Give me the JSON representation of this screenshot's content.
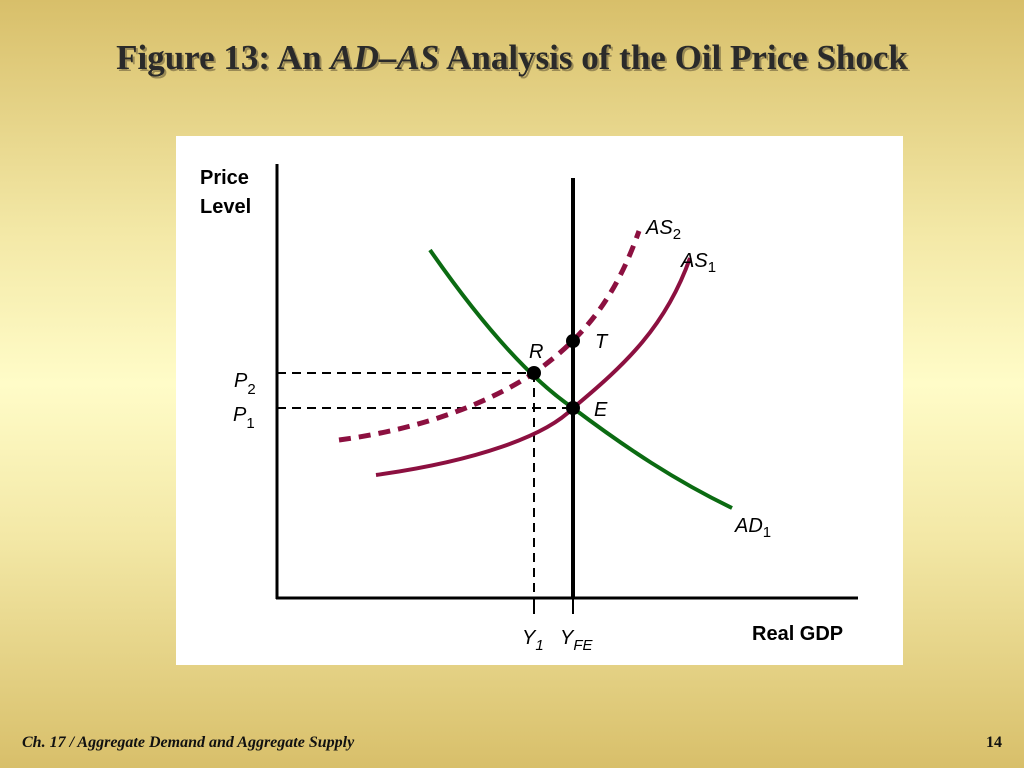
{
  "slide": {
    "title_prefix": "Figure 13: An ",
    "title_italic": "AD–AS",
    "title_suffix": " Analysis of the Oil Price Shock",
    "footer_left": "Ch. 17 / Aggregate Demand and Aggregate Supply",
    "page_number": "14"
  },
  "diagram": {
    "y_axis_label_line1": "Price",
    "y_axis_label_line2": "Level",
    "x_axis_label": "Real GDP",
    "p2": {
      "base": "P",
      "sub": "2"
    },
    "p1": {
      "base": "P",
      "sub": "1"
    },
    "y1": {
      "base": "Y",
      "sub": "1"
    },
    "yfe": {
      "base": "Y",
      "sub": "FE"
    },
    "as2": {
      "base": "AS",
      "sub": "2"
    },
    "as1": {
      "base": "AS",
      "sub": "1"
    },
    "ad1": {
      "base": "AD",
      "sub": "1"
    },
    "point_r": "R",
    "point_t": "T",
    "point_e": "E",
    "colors": {
      "ad_curve": "#0b6b12",
      "as_curves": "#8c1040",
      "axis": "#000000"
    }
  }
}
